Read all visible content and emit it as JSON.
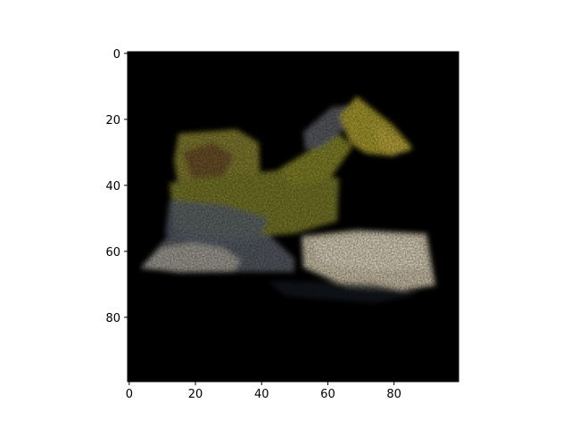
{
  "chart_data": {
    "type": "heatmap",
    "title": "",
    "xlabel": "",
    "ylabel": "",
    "image_size": [
      100,
      100
    ],
    "xlim": [
      -0.5,
      99.5
    ],
    "ylim": [
      99.5,
      -0.5
    ],
    "x_ticks": [
      0,
      20,
      40,
      60,
      80
    ],
    "y_ticks": [
      0,
      20,
      40,
      60,
      80
    ],
    "x_tick_labels": [
      "0",
      "20",
      "40",
      "60",
      "80"
    ],
    "y_tick_labels": [
      "0",
      "20",
      "40",
      "60",
      "80"
    ],
    "grid": false,
    "colors": {
      "background": "#000000",
      "yellow_body": "#8c8a2a",
      "yellow_bright": "#b5a833",
      "gray_blue": "#5a6272",
      "cream": "#d8cdb2",
      "brown": "#6b4a2a"
    }
  }
}
